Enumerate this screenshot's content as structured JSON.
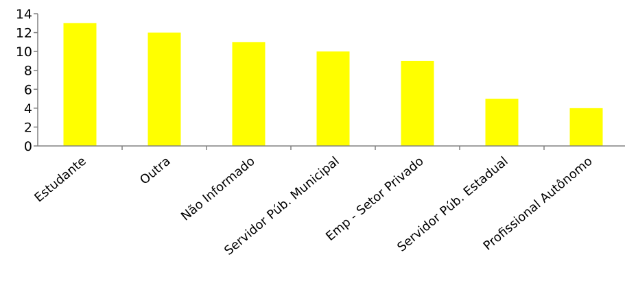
{
  "chart_data": {
    "type": "bar",
    "title": "",
    "xlabel": "",
    "ylabel": "",
    "categories": [
      "Estudante",
      "Outra",
      "Não Informado",
      "Servidor Púb. Municipal",
      "Emp - Setor Privado",
      "Servidor Púb. Estadual",
      "Profissional Autônomo"
    ],
    "values": [
      13,
      12,
      11,
      10,
      9,
      5,
      4
    ],
    "ylim": [
      0,
      14
    ],
    "yticks": [
      0,
      2,
      4,
      6,
      8,
      10,
      12,
      14
    ],
    "grid": false,
    "legend": "none",
    "bar_color": "#ffff00",
    "axis_color": "#808080"
  }
}
